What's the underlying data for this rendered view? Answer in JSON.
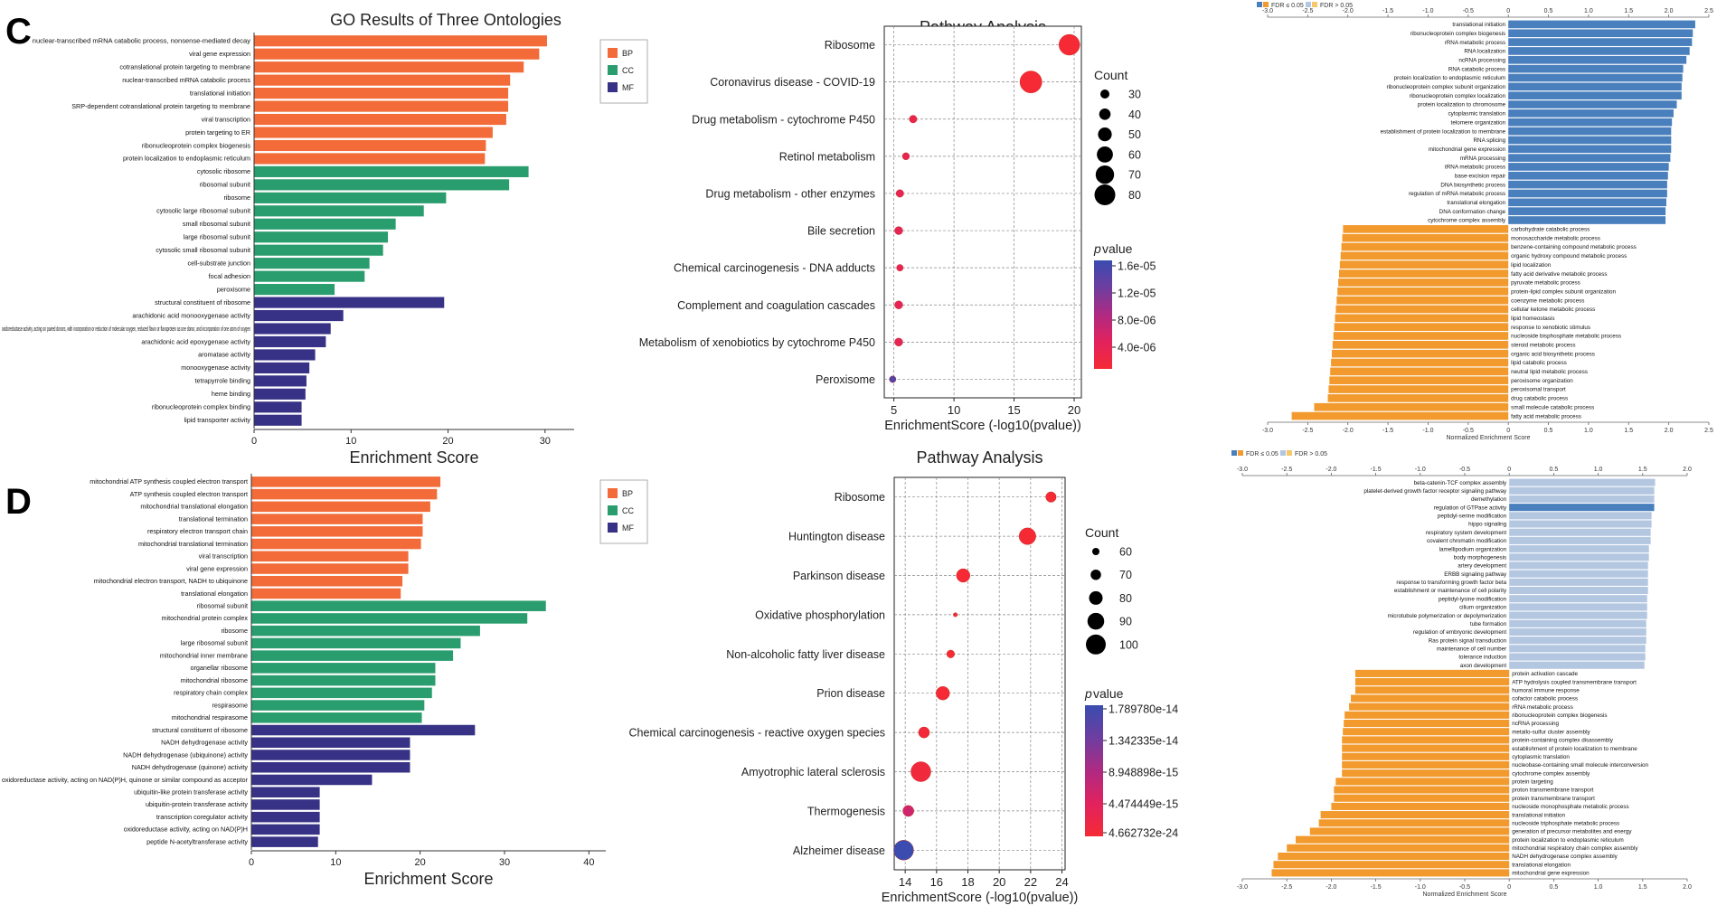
{
  "panels": {
    "c": "C",
    "d": "D"
  },
  "colors": {
    "bp": "#f26b38",
    "cc": "#2a9d6e",
    "mf": "#373285",
    "gsea_pos": "#4a7fbd",
    "gsea_light": "#b3c7e1",
    "gsea_neg": "#f29a2e",
    "gsea_neg_light": "#f6c869"
  },
  "chart_data": [
    {
      "id": "go_c",
      "type": "bar",
      "orientation": "horizontal",
      "title": "GO Results of Three Ontologies",
      "xlabel": "Enrichment Score",
      "xlim": [
        0,
        33
      ],
      "xticks": [
        0,
        10,
        20,
        30
      ],
      "legend": [
        "BP",
        "CC",
        "MF"
      ],
      "legend_position": "top-right",
      "categories": [
        "nuclear-transcribed mRNA catabolic process, nonsense-mediated decay",
        "viral gene expression",
        "cotranslational protein targeting to membrane",
        "nuclear-transcribed mRNA catabolic process",
        "translational initiation",
        "SRP-dependent cotranslational protein targeting to membrane",
        "viral transcription",
        "protein targeting to ER",
        "ribonucleoprotein complex biogenesis",
        "protein localization to endoplasmic reticulum",
        "cytosolic ribosome",
        "ribosomal subunit",
        "ribosome",
        "cytosolic large ribosomal subunit",
        "small ribosomal subunit",
        "large ribosomal subunit",
        "cytosolic small ribosomal subunit",
        "cell-substrate junction",
        "focal adhesion",
        "peroxisome",
        "structural constituent of ribosome",
        "arachidonic acid monooxygenase activity",
        "oxidoreductase activity, acting on paired donors, with incorporation or reduction of molecular oxygen, reduced flavin or flavoprotein as one donor, and incorporation of one atom of oxygen",
        "arachidonic acid epoxygenase activity",
        "aromatase activity",
        "monooxygenase activity",
        "tetrapyrrole binding",
        "heme binding",
        "ribonucleoprotein complex binding",
        "lipid transporter activity"
      ],
      "groups": [
        "BP",
        "BP",
        "BP",
        "BP",
        "BP",
        "BP",
        "BP",
        "BP",
        "BP",
        "BP",
        "CC",
        "CC",
        "CC",
        "CC",
        "CC",
        "CC",
        "CC",
        "CC",
        "CC",
        "CC",
        "MF",
        "MF",
        "MF",
        "MF",
        "MF",
        "MF",
        "MF",
        "MF",
        "MF",
        "MF"
      ],
      "values": [
        30.2,
        29.4,
        27.8,
        26.4,
        26.2,
        26.2,
        26.0,
        24.6,
        23.9,
        23.8,
        28.3,
        26.3,
        19.8,
        17.5,
        14.6,
        13.8,
        13.3,
        11.9,
        11.4,
        8.3,
        19.6,
        9.2,
        7.9,
        7.4,
        6.3,
        5.7,
        5.4,
        5.3,
        4.9,
        4.9
      ]
    },
    {
      "id": "pathway_c",
      "type": "scatter",
      "title": "Pathway Analysis",
      "xlabel": "EnrichmentScore (-log10(pvalue))",
      "xlim": [
        4.2,
        20.6
      ],
      "xticks": [
        5,
        10,
        15,
        20
      ],
      "categories": [
        "Ribosome",
        "Coronavirus disease - COVID-19",
        "Drug metabolism - cytochrome P450",
        "Retinol metabolism",
        "Drug metabolism - other enzymes",
        "Bile secretion",
        "Chemical carcinogenesis - DNA adducts",
        "Complement and coagulation cascades",
        "Metabolism of xenobiotics by cytochrome P450",
        "Peroxisome"
      ],
      "x": [
        19.6,
        16.4,
        6.6,
        6.0,
        5.5,
        5.4,
        5.5,
        5.4,
        5.4,
        4.9
      ],
      "count": [
        80,
        85,
        24,
        22,
        24,
        26,
        20,
        26,
        26,
        20
      ],
      "pvalue": [
        0.0,
        0.0,
        3e-06,
        3.5e-06,
        4e-06,
        4.2e-06,
        3.8e-06,
        4.2e-06,
        4.2e-06,
        1.6e-05
      ],
      "size_legend_title": "Count",
      "size_legend": [
        30,
        40,
        50,
        60,
        70,
        80
      ],
      "color_legend_title": "p",
      "color_legend_suffix": "value",
      "color_ticks": [
        "1.6e-05",
        "1.2e-05",
        "8.0e-06",
        "4.0e-06"
      ],
      "color_range": [
        0,
        1.75e-05
      ]
    },
    {
      "id": "gsea_c",
      "type": "bar",
      "orientation": "horizontal",
      "xlabel": "Normalized Enrichment Score",
      "xlim": [
        -3.0,
        2.5
      ],
      "xticks": [
        "-3.0",
        "-2.5",
        "-2.0",
        "-1.5",
        "-1.0",
        "-0.5",
        "0",
        "0.5",
        "1.0",
        "1.5",
        "2.0",
        "2.5"
      ],
      "legend": [
        "FDR ≤ 0.05",
        "FDR > 0.05"
      ],
      "legend_position": "top-left",
      "categories": [
        "translational initiation",
        "ribonucleoprotein complex biogenesis",
        "rRNA metabolic process",
        "RNA localization",
        "ncRNA processing",
        "RNA catabolic process",
        "protein localization to endoplasmic reticulum",
        "ribonucleoprotein complex subunit organization",
        "ribonucleoprotein complex localization",
        "protein localization to chromosome",
        "cytoplasmic translation",
        "telomere organization",
        "establishment of protein localization to membrane",
        "RNA splicing",
        "mitochondrial gene expression",
        "mRNA processing",
        "tRNA metabolic process",
        "base-excision repair",
        "DNA biosynthetic process",
        "regulation of mRNA metabolic process",
        "translational elongation",
        "DNA conformation change",
        "cytochrome complex assembly",
        "carbohydrate catabolic process",
        "monosaccharide metabolic process",
        "benzene-containing compound metabolic process",
        "organic hydroxy compound metabolic process",
        "lipid localization",
        "fatty acid derivative metabolic process",
        "pyruvate metabolic process",
        "protein-lipid complex subunit organization",
        "coenzyme metabolic process",
        "cellular ketone metabolic process",
        "lipid homeostasis",
        "response to xenobiotic stimulus",
        "nucleoside bisphosphate metabolic process",
        "steroid metabolic process",
        "organic acid biosynthetic process",
        "lipid catabolic process",
        "neutral lipid metabolic process",
        "peroxisome organization",
        "peroxisomal transport",
        "drug catabolic process",
        "small molecule catabolic process",
        "fatty acid metabolic process"
      ],
      "values": [
        2.33,
        2.3,
        2.29,
        2.26,
        2.22,
        2.18,
        2.17,
        2.16,
        2.16,
        2.1,
        2.06,
        2.04,
        2.03,
        2.03,
        2.03,
        2.02,
        2.0,
        1.99,
        1.98,
        1.98,
        1.97,
        1.96,
        1.96,
        -2.06,
        -2.07,
        -2.08,
        -2.09,
        -2.1,
        -2.11,
        -2.12,
        -2.13,
        -2.14,
        -2.15,
        -2.16,
        -2.17,
        -2.18,
        -2.19,
        -2.2,
        -2.21,
        -2.22,
        -2.23,
        -2.24,
        -2.25,
        -2.42,
        -2.7
      ],
      "significant": [
        true,
        true,
        true,
        true,
        true,
        true,
        true,
        true,
        true,
        true,
        true,
        true,
        true,
        true,
        true,
        true,
        true,
        true,
        true,
        true,
        true,
        true,
        true,
        true,
        true,
        true,
        true,
        true,
        true,
        true,
        true,
        true,
        true,
        true,
        true,
        true,
        true,
        true,
        true,
        true,
        true,
        true,
        true,
        true,
        true
      ]
    },
    {
      "id": "go_d",
      "type": "bar",
      "orientation": "horizontal",
      "xlabel": "Enrichment Score",
      "xlim": [
        0,
        42
      ],
      "xticks": [
        0,
        10,
        20,
        30,
        40
      ],
      "legend": [
        "BP",
        "CC",
        "MF"
      ],
      "legend_position": "top-right",
      "categories": [
        "mitochondrial ATP synthesis coupled electron transport",
        "ATP synthesis coupled electron transport",
        "mitochondrial translational elongation",
        "translational termination",
        "respiratory electron transport chain",
        "mitochondrial translational termination",
        "viral transcription",
        "viral gene expression",
        "mitochondrial electron transport, NADH to ubiquinone",
        "translational elongation",
        "ribosomal subunit",
        "mitochondrial protein complex",
        "ribosome",
        "large ribosomal subunit",
        "mitochondrial inner membrane",
        "organellar ribosome",
        "mitochondrial ribosome",
        "respiratory chain complex",
        "respirasome",
        "mitochondrial respirasome",
        "structural constituent of ribosome",
        "NADH dehydrogenase activity",
        "NADH dehydrogenase (ubiquinone) activity",
        "NADH dehydrogenase (quinone) activity",
        "oxidoreductase activity, acting on NAD(P)H, quinone or similar compound as acceptor",
        "ubiquitin-like protein transferase activity",
        "ubiquitin-protein transferase activity",
        "transcription coregulator activity",
        "oxidoreductase activity, acting on NAD(P)H",
        "peptide N-acetyltransferase activity"
      ],
      "groups": [
        "BP",
        "BP",
        "BP",
        "BP",
        "BP",
        "BP",
        "BP",
        "BP",
        "BP",
        "BP",
        "CC",
        "CC",
        "CC",
        "CC",
        "CC",
        "CC",
        "CC",
        "CC",
        "CC",
        "CC",
        "MF",
        "MF",
        "MF",
        "MF",
        "MF",
        "MF",
        "MF",
        "MF",
        "MF",
        "MF"
      ],
      "values": [
        22.4,
        22.0,
        21.2,
        20.3,
        20.3,
        20.1,
        18.6,
        18.6,
        17.9,
        17.7,
        34.9,
        32.7,
        27.1,
        24.8,
        23.9,
        21.8,
        21.8,
        21.4,
        20.5,
        20.2,
        26.5,
        18.8,
        18.8,
        18.8,
        14.3,
        8.1,
        8.1,
        8.1,
        8.1,
        7.9
      ]
    },
    {
      "id": "pathway_d",
      "type": "scatter",
      "title": "Pathway Analysis",
      "xlabel": "EnrichmentScore (-log10(pvalue))",
      "xlim": [
        13.3,
        24.2
      ],
      "xticks": [
        14,
        16,
        18,
        20,
        22,
        24
      ],
      "categories": [
        "Ribosome",
        "Huntington disease",
        "Parkinson disease",
        "Oxidative phosphorylation",
        "Non-alcoholic fatty liver disease",
        "Prion disease",
        "Chemical carcinogenesis - reactive oxygen species",
        "Amyotrophic lateral sclerosis",
        "Thermogenesis",
        "Alzheimer disease"
      ],
      "x": [
        23.3,
        21.8,
        17.7,
        17.2,
        16.9,
        16.4,
        15.2,
        15.0,
        14.2,
        13.9
      ],
      "count": [
        70,
        90,
        80,
        50,
        62,
        80,
        72,
        100,
        72,
        100
      ],
      "pvalue": [
        5e-24,
        1.5e-22,
        2e-18,
        6e-18,
        1.2e-17,
        4e-17,
        6e-16,
        1e-15,
        7e-15,
        1.79e-14
      ],
      "size_legend_title": "Count",
      "size_legend": [
        60,
        70,
        80,
        90,
        100
      ],
      "color_legend_title": "p",
      "color_legend_suffix": "value",
      "color_ticks": [
        "1.789780e-14",
        "1.342335e-14",
        "8.948898e-15",
        "4.474449e-15",
        "4.662732e-24"
      ],
      "color_range": [
        0,
        1.79e-14
      ]
    },
    {
      "id": "gsea_d",
      "type": "bar",
      "orientation": "horizontal",
      "xlabel": "Normalized Enrichment Score",
      "xlim": [
        -3.0,
        2.0
      ],
      "xticks": [
        "-3.0",
        "-2.5",
        "-2.0",
        "-1.5",
        "-1.0",
        "-0.5",
        "0",
        "0.5",
        "1.0",
        "1.5",
        "2.0"
      ],
      "legend": [
        "FDR ≤ 0.05",
        "FDR > 0.05"
      ],
      "legend_position": "top-left",
      "categories": [
        "beta-catenin-TCF complex assembly",
        "platelet-derived growth factor receptor signaling pathway",
        "demethylation",
        "regulation of GTPase activity",
        "peptidyl-serine modification",
        "hippo signaling",
        "respiratory system development",
        "covalent chromatin modification",
        "lamellipodium organization",
        "body morphogenesis",
        "artery development",
        "ERBB signaling pathway",
        "response to transforming growth factor beta",
        "establishment or maintenance of cell polarity",
        "peptidyl-lysine modification",
        "cilium organization",
        "microtubule polymerization or depolymerization",
        "tube formation",
        "regulation of embryonic development",
        "Ras protein signal transduction",
        "maintenance of cell number",
        "tolerance induction",
        "axon development",
        "protein activation cascade",
        "ATP hydrolysis coupled transmembrane transport",
        "humoral immune response",
        "cofactor catabolic process",
        "rRNA metabolic process",
        "ribonucleoprotein complex biogenesis",
        "ncRNA processing",
        "metallo-sulfur cluster assembly",
        "protein-containing complex disassembly",
        "establishment of protein localization to membrane",
        "cytoplasmic translation",
        "nucleobase-containing small molecule interconversion",
        "cytochrome complex assembly",
        "protein targeting",
        "proton transmembrane transport",
        "protein transmembrane transport",
        "nucleoside monophosphate metabolic process",
        "translational initiation",
        "nucleoside triphosphate metabolic process",
        "generation of precursor metabolites and energy",
        "protein localization to endoplasmic reticulum",
        "mitochondrial respiratory chain complex assembly",
        "NADH dehydrogenase complex assembly",
        "translational elongation",
        "mitochondrial gene expression"
      ],
      "values": [
        1.64,
        1.63,
        1.63,
        1.63,
        1.6,
        1.6,
        1.59,
        1.59,
        1.57,
        1.57,
        1.56,
        1.56,
        1.56,
        1.56,
        1.55,
        1.55,
        1.55,
        1.54,
        1.54,
        1.54,
        1.53,
        1.53,
        1.52,
        -1.73,
        -1.73,
        -1.73,
        -1.78,
        -1.8,
        -1.85,
        -1.86,
        -1.87,
        -1.88,
        -1.88,
        -1.88,
        -1.88,
        -1.88,
        -1.95,
        -1.97,
        -1.97,
        -2.0,
        -2.12,
        -2.14,
        -2.24,
        -2.4,
        -2.5,
        -2.6,
        -2.65,
        -2.67
      ],
      "significant": [
        false,
        false,
        false,
        true,
        false,
        false,
        false,
        false,
        false,
        false,
        false,
        false,
        false,
        false,
        false,
        false,
        false,
        false,
        false,
        false,
        false,
        false,
        false,
        true,
        true,
        true,
        true,
        true,
        true,
        true,
        true,
        true,
        true,
        true,
        true,
        true,
        true,
        true,
        true,
        true,
        true,
        true,
        true,
        true,
        true,
        true,
        true,
        true
      ]
    }
  ]
}
